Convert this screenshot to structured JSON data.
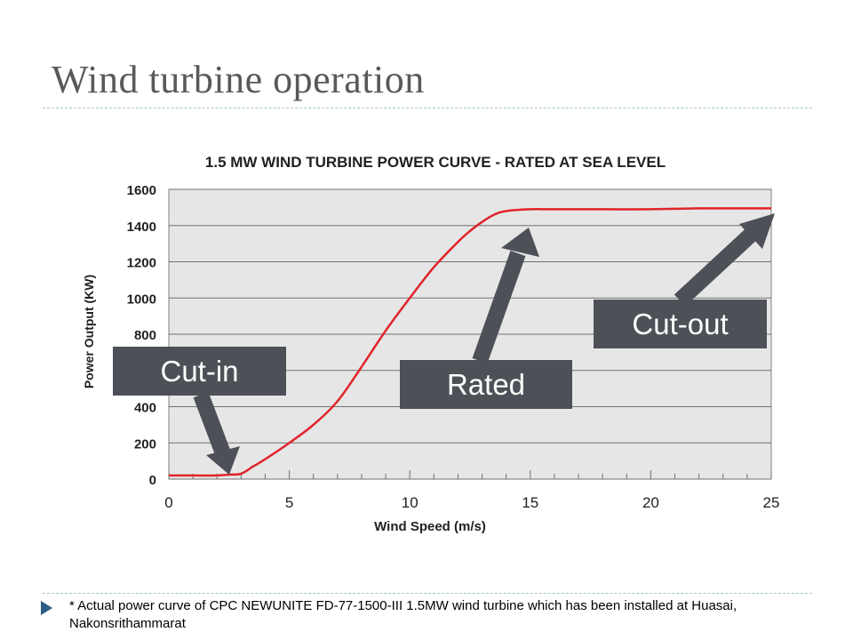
{
  "title": "Wind turbine operation",
  "footnote": "* Actual power curve of CPC NEWUNITE FD-77-1500-III 1.5MW wind turbine which has been installed at Huasai, Nakonsrithammarat",
  "callouts": {
    "cut_in": "Cut-in",
    "rated": "Rated",
    "cut_out": "Cut-out"
  },
  "colors": {
    "curve": "#e0242a",
    "callout": "#4d5157",
    "plot_bg": "#e6e6e6",
    "divider": "#a7c4cf",
    "bullet": "#2e5e86"
  },
  "chart_data": {
    "type": "line",
    "title": "1.5 MW WIND TURBINE POWER CURVE - RATED AT SEA LEVEL",
    "xlabel": "Wind Speed (m/s)",
    "ylabel": "Power Output (KW)",
    "xlim": [
      0,
      25
    ],
    "ylim": [
      0,
      1600
    ],
    "xticks": [
      0,
      5,
      10,
      15,
      20,
      25
    ],
    "yticks": [
      0,
      200,
      400,
      600,
      800,
      1000,
      1200,
      1400,
      1600
    ],
    "grid": true,
    "series": [
      {
        "x": [
          0,
          1,
          2,
          2.5,
          3,
          3.5,
          4,
          5,
          6,
          7,
          8,
          9,
          10,
          11,
          12,
          12.5,
          13,
          13.5,
          14,
          15,
          16,
          18,
          20,
          22,
          24,
          25
        ],
        "y": [
          20,
          20,
          20,
          25,
          30,
          70,
          110,
          200,
          300,
          430,
          620,
          820,
          1000,
          1170,
          1310,
          1370,
          1420,
          1460,
          1480,
          1490,
          1490,
          1490,
          1490,
          1495,
          1495,
          1495
        ]
      }
    ]
  }
}
